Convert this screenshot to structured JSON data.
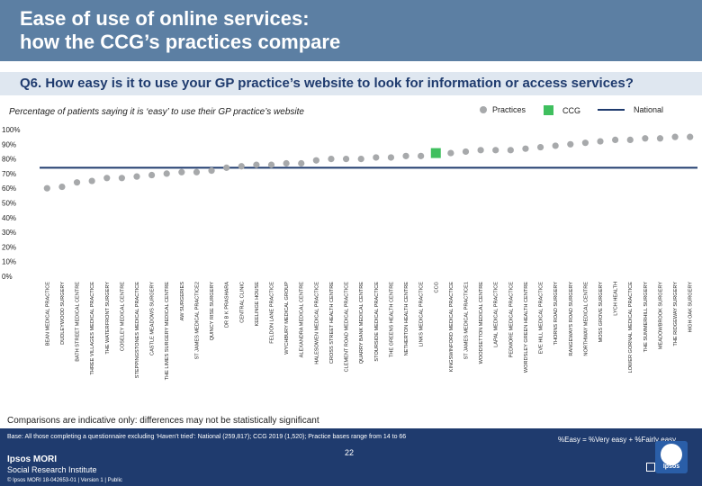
{
  "slide": {
    "title": "Ease of use of online services:\nhow the CCG’s practices compare",
    "question": "Q6. How easy is it to use your GP practice’s website to look for information or access services?",
    "subtitle": "Percentage of patients saying it is ‘easy’ to use their GP practice’s website",
    "legend_practices": "Practices",
    "legend_ccg": "CCG",
    "legend_national": "National",
    "comparisons_note": "Comparisons are indicative only: differences may not be statistically significant",
    "base_note": "Base: All those completing a questionnaire excluding ‘Haven’t tried’: National (259,817); CCG 2019 (1,520); Practice bases range from 14 to 66",
    "formula": "%Easy = %Very easy + %Fairly easy",
    "page_number": "22",
    "ipsos_name": "Ipsos MORI",
    "ipsos_unit": "Social Research Institute",
    "copyright": "© Ipsos MORI     18-042653-01 | Version 1 | Public",
    "logo_text": "Ipsos",
    "colors": {
      "header": "#5c7fa3",
      "practice": "#a7a9ab",
      "ccg": "#3fbf5e",
      "national": "#1f3b6e"
    }
  },
  "chart_data": {
    "type": "scatter",
    "title": "Percentage of patients saying it is ‘easy’ to use their GP practice’s website",
    "ylabel": "",
    "xlabel": "",
    "ylim": [
      0,
      100
    ],
    "yticks": [
      "0%",
      "10%",
      "20%",
      "30%",
      "40%",
      "50%",
      "60%",
      "70%",
      "80%",
      "90%",
      "100%"
    ],
    "national": 74,
    "ccg_category": "CCG",
    "categories": [
      "BEAN MEDICAL PRACTICE",
      "DUDLEYWOOD SURGERY",
      "BATH STREET MEDICAL CENTRE",
      "THREE VILLAGES MEDICAL PRACTICE",
      "THE WATERFRONT SURGERY",
      "COSELEY MEDICAL CENTRE",
      "STEPPINGSTONES MEDICAL PRACTICE",
      "CASTLE MEADOWS SURGERY",
      "THE LIMES SURGERY MEDICAL CENTRE",
      "AW SURGERIES",
      "ST JAMES MEDICAL PRACTICE2",
      "QUINCY RISE SURGERY",
      "DR B K PRASHARA",
      "CENTRAL CLINIC",
      "KEELINGE HOUSE",
      "FELDON LANE PRACTICE",
      "WYCHBURY MEDICAL GROUP",
      "ALEXANDRA MEDICAL CENTRE",
      "HALESOWEN MEDICAL PRACTICE",
      "CROSS STREET HEALTH CENTRE",
      "CLEMENT ROAD MEDICAL PRACTICE",
      "QUARRY BANK MEDICAL CENTRE",
      "STOURSIDE MEDICAL PRACTICE",
      "THE GREENS HEALTH CENTRE",
      "NETHERTON HEALTH CENTRE",
      "LINKS MEDICAL PRACTICE",
      "CCG",
      "KINGSWINFORD MEDICAL PRACTICE",
      "ST JAMES MEDICAL PRACTICE1",
      "WOODSETTON MEDICAL CENTRE",
      "LAPAL MEDICAL PRACTICE",
      "PEDMORE MEDICAL PRACTICE",
      "WORDSLEY GREEN HEALTH CENTRE",
      "EVE HILL MEDICAL PRACTICE",
      "THORNS ROAD SURGERY",
      "RANGEWAYS ROAD SURGERY",
      "NORTHWAY MEDICAL CENTRE",
      "MOSS GROVE SURGERY",
      "LYCH HEALTH",
      "LOWER GORNAL MEDICAL PRACTICE",
      "THE SUMMERHILL SURGERY",
      "MEADOWBROOK SURGERY",
      "THE RIDGEWAY SURGERY",
      "HIGH OAK SURGERY"
    ],
    "values": [
      60,
      61,
      64,
      65,
      67,
      67,
      68,
      69,
      70,
      71,
      71,
      72,
      74,
      75,
      76,
      76,
      77,
      77,
      79,
      80,
      80,
      80,
      81,
      81,
      82,
      82,
      84,
      84,
      85,
      86,
      86,
      86,
      87,
      88,
      89,
      90,
      91,
      92,
      93,
      93,
      94,
      94,
      95,
      95
    ]
  }
}
